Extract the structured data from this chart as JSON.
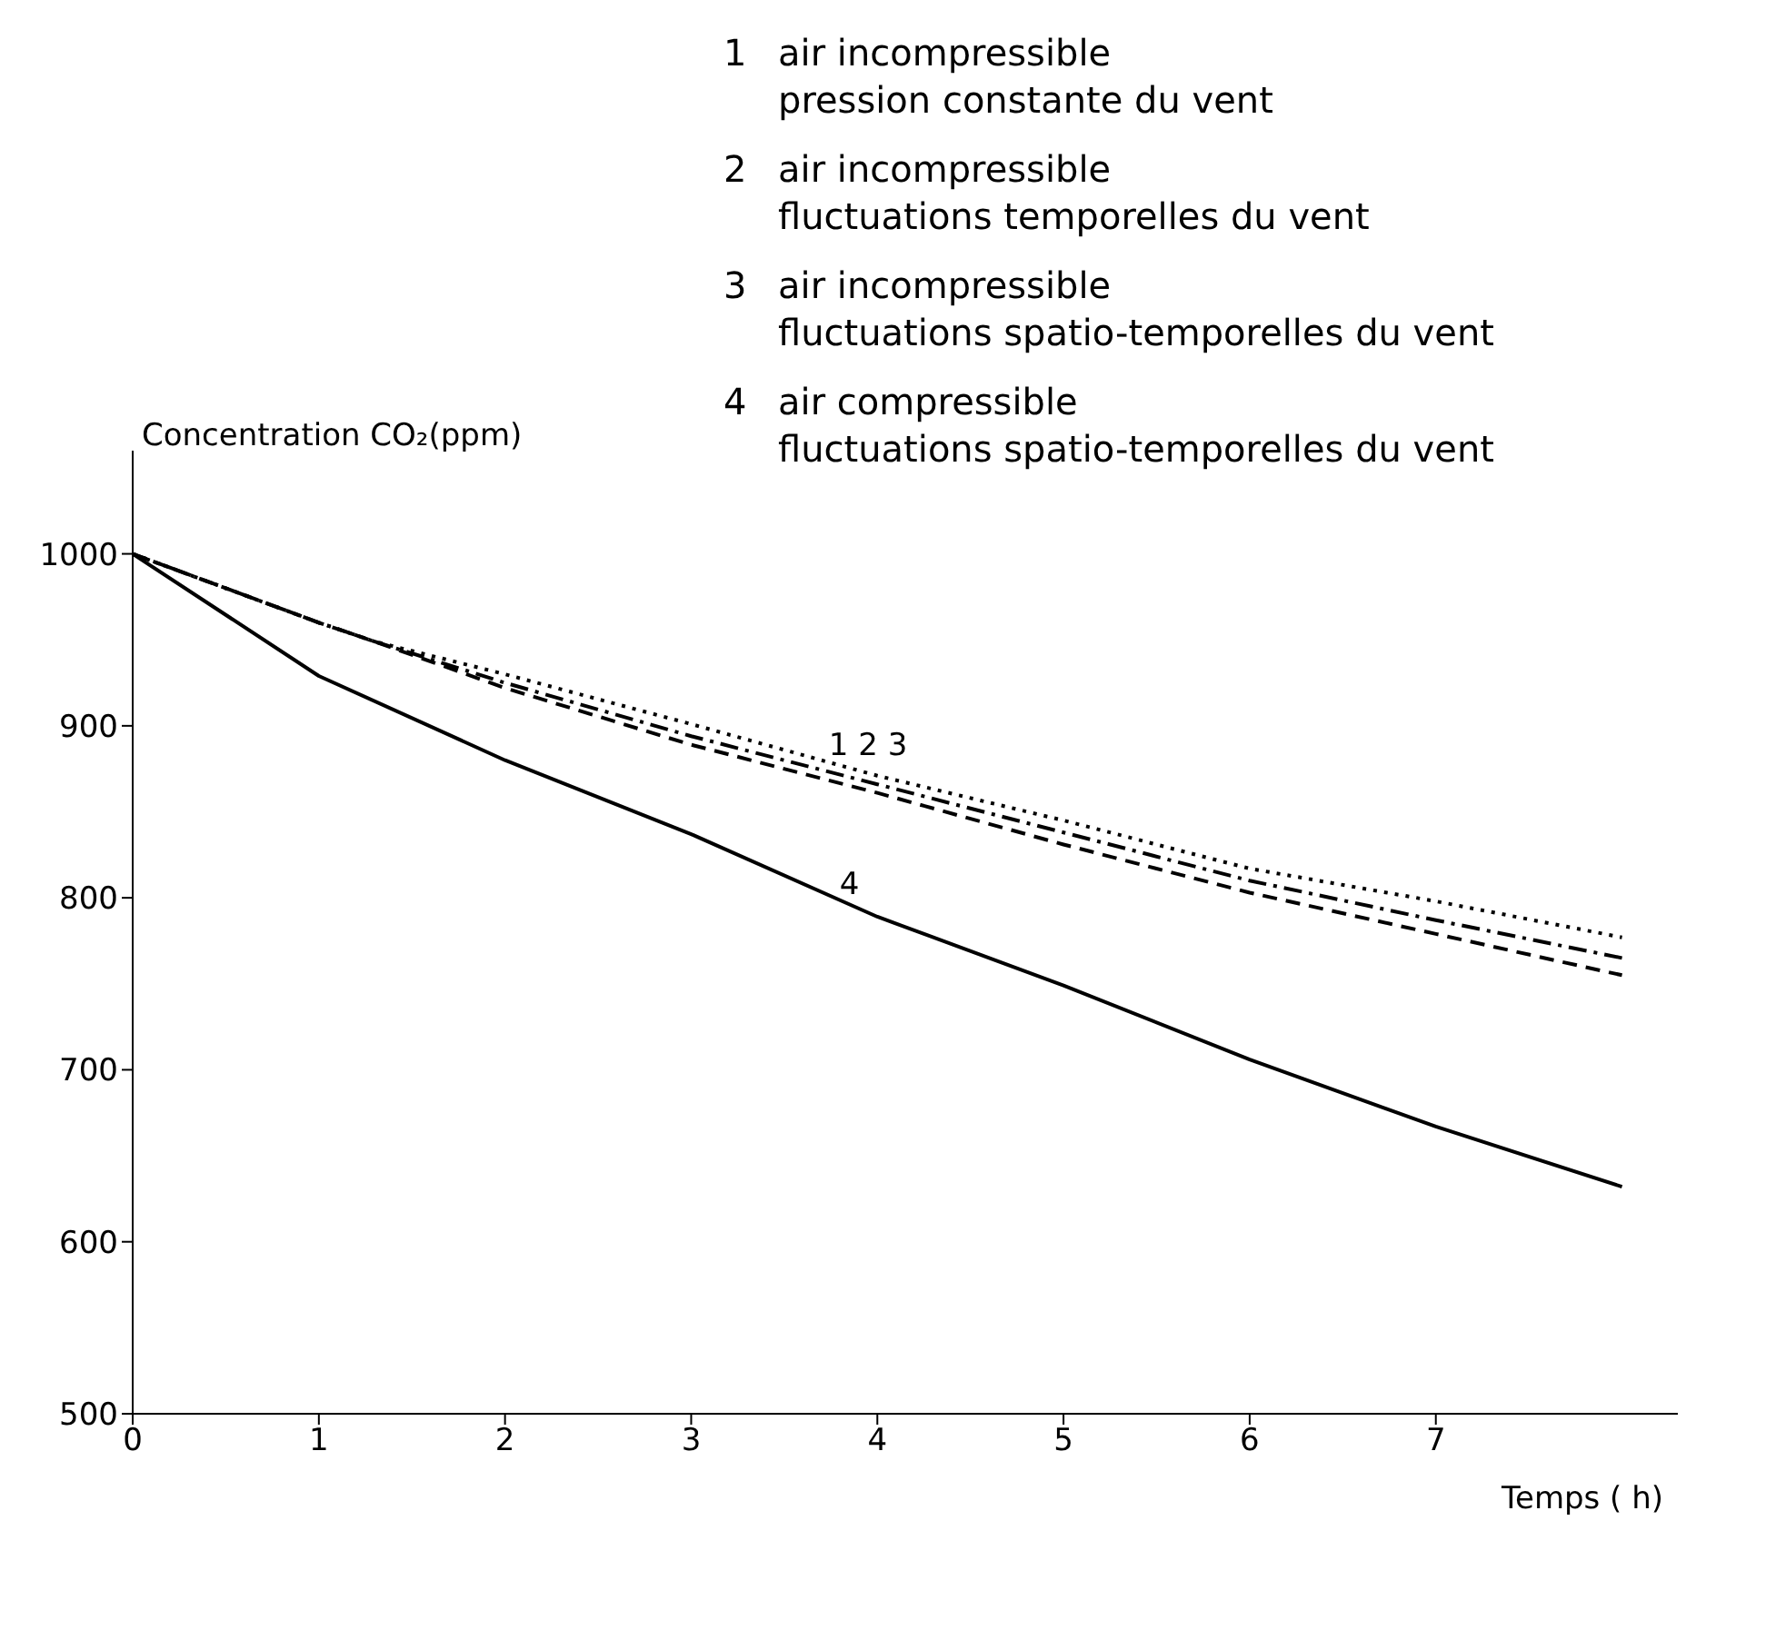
{
  "chart_data": {
    "type": "line",
    "xlabel": "Temps ( h)",
    "ylabel": "Concentration CO₂(ppm)",
    "xlim": [
      0,
      8.3
    ],
    "xticks": [
      0,
      1,
      2,
      3,
      4,
      5,
      6,
      7
    ],
    "ylim": [
      500,
      1060
    ],
    "yticks": [
      500,
      600,
      700,
      800,
      900,
      1000
    ],
    "grid": false,
    "legend": false,
    "series": [
      {
        "color": "#000000",
        "line_style": "dotted",
        "x": [
          0,
          1,
          1.3,
          2,
          3,
          4,
          5,
          6,
          7,
          8
        ],
        "values": [
          1000,
          960,
          949,
          930,
          901,
          871,
          845,
          817,
          798,
          777
        ]
      },
      {
        "color": "#000000",
        "line_style": "dashdot",
        "x": [
          0,
          1,
          1.3,
          2,
          3,
          4,
          5,
          6,
          7,
          8
        ],
        "values": [
          1000,
          960,
          949,
          925,
          894,
          866,
          838,
          810,
          787,
          765
        ]
      },
      {
        "color": "#000000",
        "line_style": "dashed",
        "x": [
          0,
          1,
          1.3,
          2,
          3,
          4,
          5,
          6,
          7,
          8
        ],
        "values": [
          1000,
          960,
          949,
          922,
          889,
          861,
          831,
          803,
          779,
          755
        ]
      },
      {
        "color": "#000000",
        "line_style": "solid",
        "x": [
          0,
          1,
          2,
          3,
          4,
          5,
          6,
          7,
          8
        ],
        "values": [
          1000,
          929,
          880,
          837,
          789,
          749,
          706,
          667,
          632
        ]
      }
    ],
    "annotations": [
      "1 air incompressible\npression constante du vent",
      "2 air incompressible\nfluctuations temporelles du vent",
      "3 air incompressible\nfluctuations spatio-temporelles du vent",
      "4 air compressible\nfluctuations spatio-temporelles du vent",
      {
        "text": "1 2 3",
        "x": 3.95,
        "y": 878
      },
      {
        "text": "4",
        "x": 3.85,
        "y": 797
      }
    ]
  }
}
